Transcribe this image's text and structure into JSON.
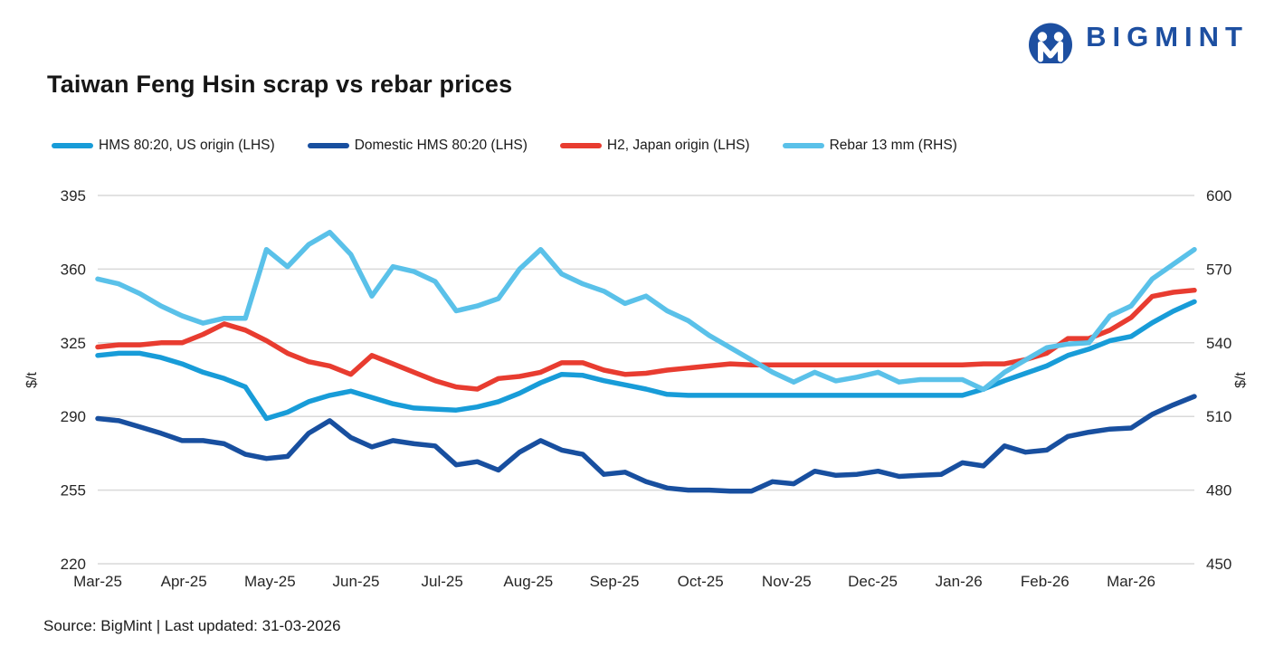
{
  "logo": {
    "text": "BIGMINT",
    "color": "#1d4fa1"
  },
  "title": "Taiwan Feng Hsin scrap vs rebar prices",
  "source_note": "Source: BigMint |  Last updated: 31-03-2026",
  "chart_data": {
    "type": "line",
    "title": "Taiwan Feng Hsin scrap vs rebar prices",
    "frequency": "weekly",
    "grid": "horizontal-only",
    "legend_position": "top",
    "x_axis": {
      "categories": [
        "Mar-25",
        "Apr-25",
        "May-25",
        "Jun-25",
        "Jul-25",
        "Aug-25",
        "Sep-25",
        "Oct-25",
        "Nov-25",
        "Dec-25",
        "Jan-26",
        "Feb-26",
        "Mar-26"
      ]
    },
    "y_axis_left": {
      "label": "$/t",
      "min": 220,
      "max": 395,
      "ticks": [
        395,
        360,
        325,
        290,
        255,
        220
      ]
    },
    "y_axis_right": {
      "label": "$/t",
      "min": 450,
      "max": 600,
      "ticks": [
        600,
        570,
        540,
        510,
        480,
        450
      ]
    },
    "series": [
      {
        "name": "HMS 80:20, US origin (LHS)",
        "axis": "left",
        "color": "#189cd8",
        "values": [
          319,
          320,
          320,
          318,
          315,
          311,
          308,
          304,
          289,
          292,
          297,
          300,
          302,
          299,
          296,
          294,
          293.5,
          293,
          294.5,
          297,
          301,
          306,
          310,
          309.5,
          307,
          305,
          303,
          300.5,
          300,
          300,
          300,
          300,
          300,
          300,
          300,
          300,
          300,
          300,
          300,
          300,
          300,
          300,
          303,
          307,
          310.5,
          314,
          319,
          322,
          326,
          328,
          334.5,
          340,
          344.5
        ]
      },
      {
        "name": "Domestic HMS 80:20 (LHS)",
        "axis": "left",
        "color": "#184f9f",
        "values": [
          289,
          288,
          285,
          282,
          278.5,
          278.5,
          277,
          272,
          270,
          271,
          282,
          288,
          280,
          275.5,
          278.5,
          277,
          276,
          267,
          268.5,
          264.5,
          273,
          278.5,
          274,
          272,
          262.5,
          263.5,
          259,
          256,
          255,
          255,
          254.5,
          254.5,
          259,
          258,
          264,
          262,
          262.5,
          264,
          261.5,
          262,
          262.5,
          268,
          266.5,
          276,
          273,
          274,
          280.5,
          282.5,
          284,
          284.5,
          291,
          295.5,
          299.5
        ]
      },
      {
        "name": "H2, Japan origin (LHS)",
        "axis": "left",
        "color": "#e83c30",
        "values": [
          323,
          324,
          324,
          325,
          325,
          329,
          334,
          331,
          326,
          320,
          316,
          314,
          310,
          319,
          315,
          311,
          307,
          304,
          303,
          308,
          309,
          311,
          315.5,
          315.5,
          312,
          310,
          310.5,
          312,
          313,
          314,
          315,
          314.5,
          314.5,
          314.5,
          314.5,
          314.5,
          314.5,
          314.5,
          314.5,
          314.5,
          314.5,
          314.5,
          315,
          315,
          317,
          320,
          327,
          327,
          331,
          337,
          347,
          349,
          350
        ]
      },
      {
        "name": "Rebar 13 mm (RHS)",
        "axis": "right",
        "color": "#5ac1e9",
        "values": [
          566,
          564,
          560,
          555,
          551,
          548,
          550,
          550,
          578,
          571,
          580,
          585,
          576,
          559,
          571,
          569,
          565,
          553,
          555,
          558,
          570,
          578,
          568,
          564,
          561,
          556,
          559,
          553,
          549,
          543,
          538,
          533,
          528,
          524,
          528,
          524.5,
          526,
          528,
          524,
          525,
          525,
          525,
          521,
          528,
          533,
          538,
          539.5,
          540,
          551,
          555,
          566,
          572,
          578
        ]
      }
    ]
  }
}
